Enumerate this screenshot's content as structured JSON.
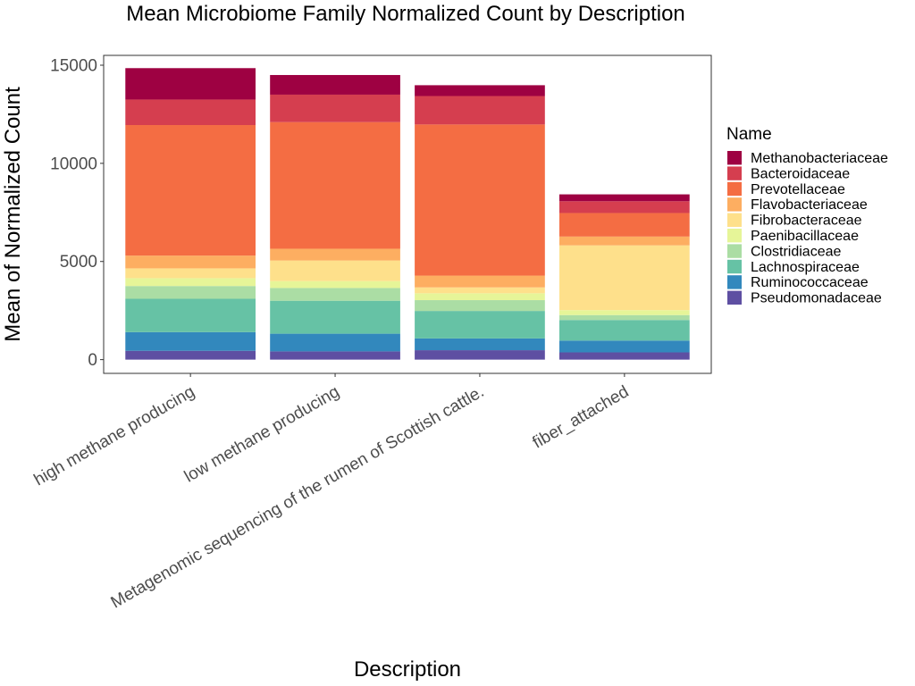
{
  "chart_data": {
    "type": "bar",
    "stacked": true,
    "title": "Mean Microbiome Family Normalized Count by Description",
    "xlabel": "Description",
    "ylabel": "Mean of Normalized Count",
    "ylim": [
      -700,
      15500
    ],
    "yticks": [
      0,
      5000,
      10000,
      15000
    ],
    "grid": false,
    "legend": {
      "title": "Name",
      "position": "right"
    },
    "categories": [
      "high methane producing",
      "low methane producing",
      "Metagenomic sequencing of the rumen of Scottish cattle.",
      "fiber_attached"
    ],
    "series": [
      {
        "name": "Pseudomonadaceae",
        "color": "#5E4FA2",
        "values": [
          450,
          420,
          480,
          370
        ]
      },
      {
        "name": "Ruminococcaceae",
        "color": "#3288BD",
        "values": [
          950,
          900,
          600,
          600
        ]
      },
      {
        "name": "Lachnospiraceae",
        "color": "#66C2A5",
        "values": [
          1700,
          1680,
          1400,
          1050
        ]
      },
      {
        "name": "Clostridiaceae",
        "color": "#ABDDA4",
        "values": [
          650,
          650,
          550,
          250
        ]
      },
      {
        "name": "Paenibacillaceae",
        "color": "#E6F598",
        "values": [
          400,
          350,
          350,
          250
        ]
      },
      {
        "name": "Fibrobacteraceae",
        "color": "#FEE08B",
        "values": [
          500,
          1050,
          300,
          3300
        ]
      },
      {
        "name": "Flavobacteriaceae",
        "color": "#FDAE61",
        "values": [
          650,
          600,
          600,
          450
        ]
      },
      {
        "name": "Prevotellaceae",
        "color": "#F46D43",
        "values": [
          6650,
          6450,
          7700,
          1200
        ]
      },
      {
        "name": "Bacteroidaceae",
        "color": "#D53E4F",
        "values": [
          1300,
          1400,
          1450,
          600
        ]
      },
      {
        "name": "Methanobacteriaceae",
        "color": "#9E0142",
        "values": [
          1600,
          1000,
          550,
          350
        ]
      }
    ]
  }
}
